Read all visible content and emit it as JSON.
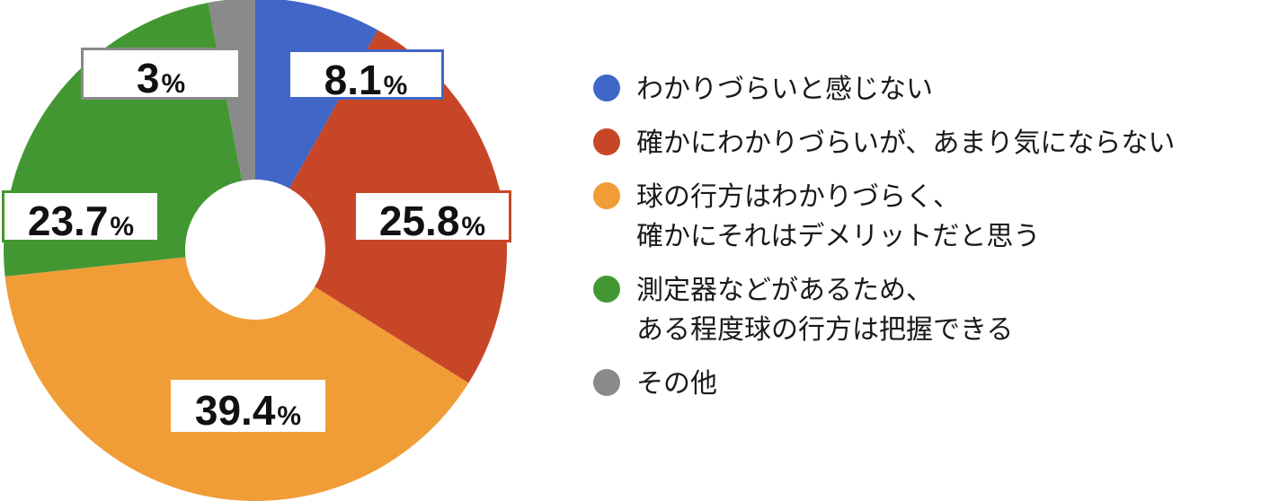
{
  "chart_data": {
    "type": "pie",
    "donut": true,
    "start_angle_deg": 0,
    "direction": "clockwise",
    "slices": [
      {
        "name": "わかりづらいと感じない",
        "lines": [
          "わかりづらいと感じない"
        ],
        "value": 8.1,
        "label": "8.1",
        "color": "#4066c7"
      },
      {
        "name": "確かにわかりづらいが、あまり気にならない",
        "lines": [
          "確かにわかりづらいが、あまり気にならない"
        ],
        "value": 25.8,
        "label": "25.8",
        "color": "#c84628"
      },
      {
        "name": "球の行方はわかりづらく、確かにそれはデメリットだと思う",
        "lines": [
          "球の行方はわかりづらく、",
          "確かにそれはデメリットだと思う"
        ],
        "value": 39.4,
        "label": "39.4",
        "color": "#f09d37"
      },
      {
        "name": "測定器などがあるため、ある程度球の行方は把握できる",
        "lines": [
          "測定器などがあるため、",
          "ある程度球の行方は把握できる"
        ],
        "value": 23.7,
        "label": "23.7",
        "color": "#439732"
      },
      {
        "name": "その他",
        "lines": [
          "その他"
        ],
        "value": 3.0,
        "label": "3",
        "color": "#8a8a8a"
      }
    ],
    "percent_sign": "%",
    "legend_position": "right"
  }
}
